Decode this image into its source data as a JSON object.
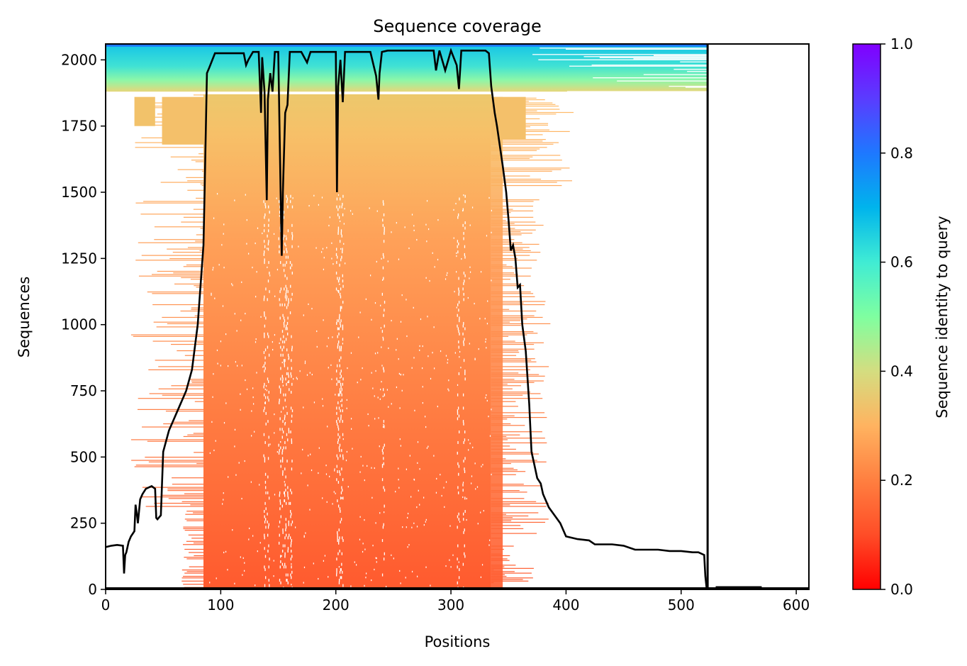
{
  "chart_data": {
    "type": "heatmap",
    "title": "Sequence coverage",
    "xlabel": "Positions",
    "ylabel": "Sequences",
    "xlim": [
      0,
      611
    ],
    "ylim": [
      0,
      2060
    ],
    "xticks": [
      0,
      100,
      200,
      300,
      400,
      500,
      600
    ],
    "yticks": [
      0,
      250,
      500,
      750,
      1000,
      1250,
      1500,
      1750,
      2000
    ],
    "query_length_line": 523,
    "colorbar": {
      "label": "Sequence identity to query",
      "range": [
        0,
        1
      ],
      "ticks": [
        0.0,
        0.2,
        0.4,
        0.6,
        0.8,
        1.0
      ],
      "colormap": "rainbow_r",
      "colors": [
        "#ff0000",
        "#ff7f40",
        "#d4dd80",
        "#7fffd4",
        "#00b4ec",
        "#8000ff"
      ]
    },
    "grid": false,
    "coverage_line": {
      "name": "",
      "color": "#000000",
      "x": [
        0,
        5,
        10,
        15,
        16,
        17,
        18,
        20,
        22,
        25,
        26,
        27,
        28,
        30,
        32,
        35,
        40,
        43,
        44,
        45,
        48,
        50,
        55,
        60,
        65,
        70,
        75,
        80,
        85,
        86,
        88,
        90,
        95,
        100,
        110,
        120,
        122,
        124,
        128,
        133,
        135,
        136,
        138,
        140,
        141,
        143,
        145,
        147,
        150,
        152,
        153,
        154,
        156,
        158,
        160,
        165,
        170,
        175,
        178,
        180,
        190,
        200,
        201,
        202,
        204,
        206,
        208,
        210,
        220,
        230,
        235,
        237,
        238,
        240,
        245,
        250,
        260,
        270,
        280,
        285,
        287,
        290,
        295,
        300,
        305,
        307,
        309,
        312,
        315,
        320,
        330,
        333,
        335,
        338,
        340,
        345,
        348,
        350,
        352,
        354,
        356,
        358,
        360,
        362,
        365,
        368,
        370,
        372,
        375,
        378,
        380,
        385,
        390,
        395,
        400,
        410,
        420,
        425,
        430,
        440,
        450,
        460,
        470,
        480,
        490,
        500,
        510,
        515,
        520,
        521,
        522,
        523
      ],
      "y": [
        160,
        165,
        168,
        165,
        60,
        130,
        140,
        180,
        200,
        220,
        320,
        290,
        250,
        340,
        360,
        380,
        390,
        380,
        270,
        265,
        280,
        520,
        600,
        650,
        700,
        750,
        830,
        1000,
        1300,
        1500,
        1950,
        1970,
        2025,
        2025,
        2025,
        2025,
        1980,
        2000,
        2030,
        2030,
        1800,
        2010,
        1880,
        1470,
        1850,
        1950,
        1880,
        2030,
        2030,
        1500,
        1260,
        1500,
        1800,
        1830,
        2030,
        2030,
        2030,
        1990,
        2030,
        2030,
        2030,
        2030,
        1500,
        1900,
        2000,
        1840,
        2030,
        2030,
        2030,
        2030,
        1940,
        1850,
        1950,
        2030,
        2035,
        2035,
        2035,
        2035,
        2035,
        2035,
        1960,
        2035,
        1960,
        2035,
        1980,
        1890,
        2035,
        2035,
        2035,
        2035,
        2035,
        2025,
        1900,
        1800,
        1750,
        1600,
        1500,
        1400,
        1280,
        1300,
        1250,
        1140,
        1150,
        1000,
        900,
        700,
        520,
        480,
        420,
        400,
        360,
        310,
        280,
        250,
        200,
        190,
        185,
        170,
        170,
        170,
        165,
        150,
        150,
        150,
        145,
        145,
        140,
        140,
        130,
        50,
        10,
        5
      ]
    }
  }
}
